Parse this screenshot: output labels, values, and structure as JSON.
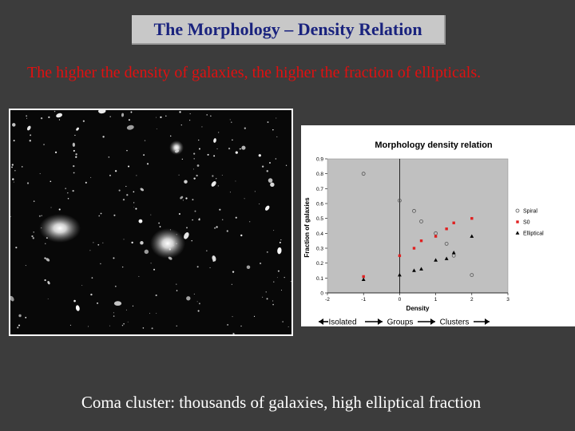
{
  "slide": {
    "title": "The Morphology – Density Relation",
    "subtitle": "The higher the density of galaxies, the higher the fraction of ellipticals.",
    "caption": "Coma cluster: thousands of galaxies, high elliptical fraction"
  },
  "colors": {
    "background": "#3c3c3c",
    "title_box": "#c8c8c8",
    "title_text": "#1a237e",
    "subtitle_text": "#e01010",
    "plot_area": "#c0c0c0",
    "spiral": "#555555",
    "s0": "#e02020",
    "elliptical": "#000000"
  },
  "chart_data": {
    "type": "scatter",
    "title": "Morphology density relation",
    "xlabel": "Density",
    "ylabel": "Fraction of galaxies",
    "xlim": [
      -2,
      3
    ],
    "ylim": [
      0,
      0.9
    ],
    "xticks": [
      "-2",
      "-1",
      "0",
      "1",
      "2",
      "3"
    ],
    "yticks": [
      "0",
      "0.1",
      "0.2",
      "0.3",
      "0.4",
      "0.5",
      "0.6",
      "0.7",
      "0.8",
      "0.9"
    ],
    "grid": false,
    "legend_position": "right",
    "series": [
      {
        "name": "Spiral",
        "marker": "open-circle",
        "points": [
          [
            -1,
            0.8
          ],
          [
            0,
            0.62
          ],
          [
            0.4,
            0.55
          ],
          [
            0.6,
            0.48
          ],
          [
            1,
            0.4
          ],
          [
            1.3,
            0.33
          ],
          [
            1.5,
            0.25
          ],
          [
            2,
            0.12
          ]
        ]
      },
      {
        "name": "S0",
        "marker": "square",
        "points": [
          [
            -1,
            0.11
          ],
          [
            0,
            0.25
          ],
          [
            0.4,
            0.3
          ],
          [
            0.6,
            0.35
          ],
          [
            1,
            0.38
          ],
          [
            1.3,
            0.43
          ],
          [
            1.5,
            0.47
          ],
          [
            2,
            0.5
          ]
        ]
      },
      {
        "name": "Elliptical",
        "marker": "triangle",
        "points": [
          [
            -1,
            0.09
          ],
          [
            0,
            0.12
          ],
          [
            0.4,
            0.15
          ],
          [
            0.6,
            0.16
          ],
          [
            1,
            0.22
          ],
          [
            1.3,
            0.23
          ],
          [
            1.5,
            0.27
          ],
          [
            2,
            0.38
          ]
        ]
      }
    ],
    "annotations": [
      "Isolated",
      "Groups",
      "Clusters"
    ]
  }
}
